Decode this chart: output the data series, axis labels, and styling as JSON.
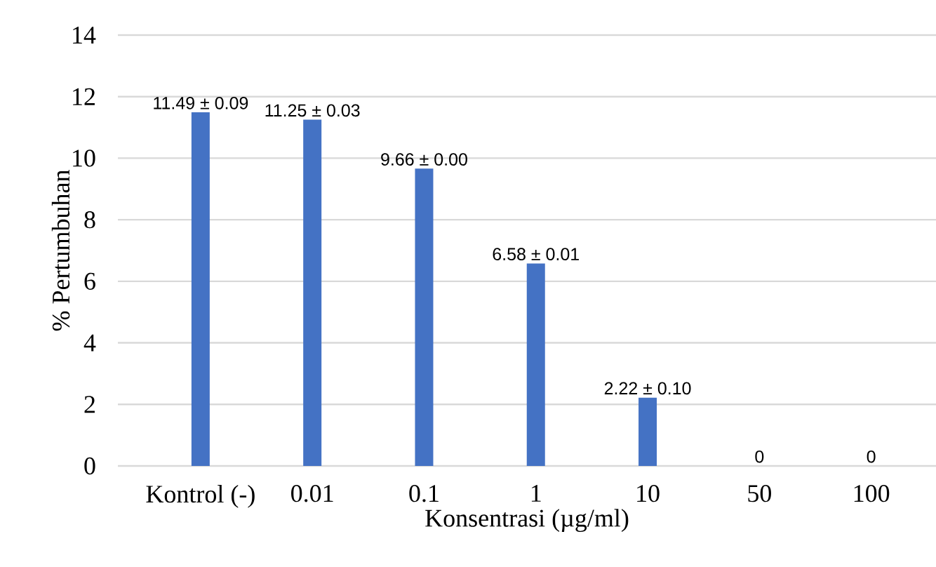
{
  "chart_data": {
    "type": "bar",
    "xlabel": "Konsentrasi (µg/ml)",
    "ylabel": "% Pertumbuhan",
    "categories": [
      "Kontrol (-)",
      "0.01",
      "0.1",
      "1",
      "10",
      "50",
      "100"
    ],
    "values": [
      11.49,
      11.25,
      9.66,
      6.58,
      2.22,
      0,
      0
    ],
    "value_labels": [
      "11.49 ± 0.09",
      "11.25 ± 0.03",
      "9.66 ± 0.00",
      "6.58 ± 0.01",
      "2.22 ± 0.10",
      "0",
      "0"
    ],
    "color": "#4472c4",
    "ylim": [
      0,
      14
    ],
    "yticks": [
      0,
      2,
      4,
      6,
      8,
      10,
      12,
      14
    ],
    "grid": "y"
  }
}
